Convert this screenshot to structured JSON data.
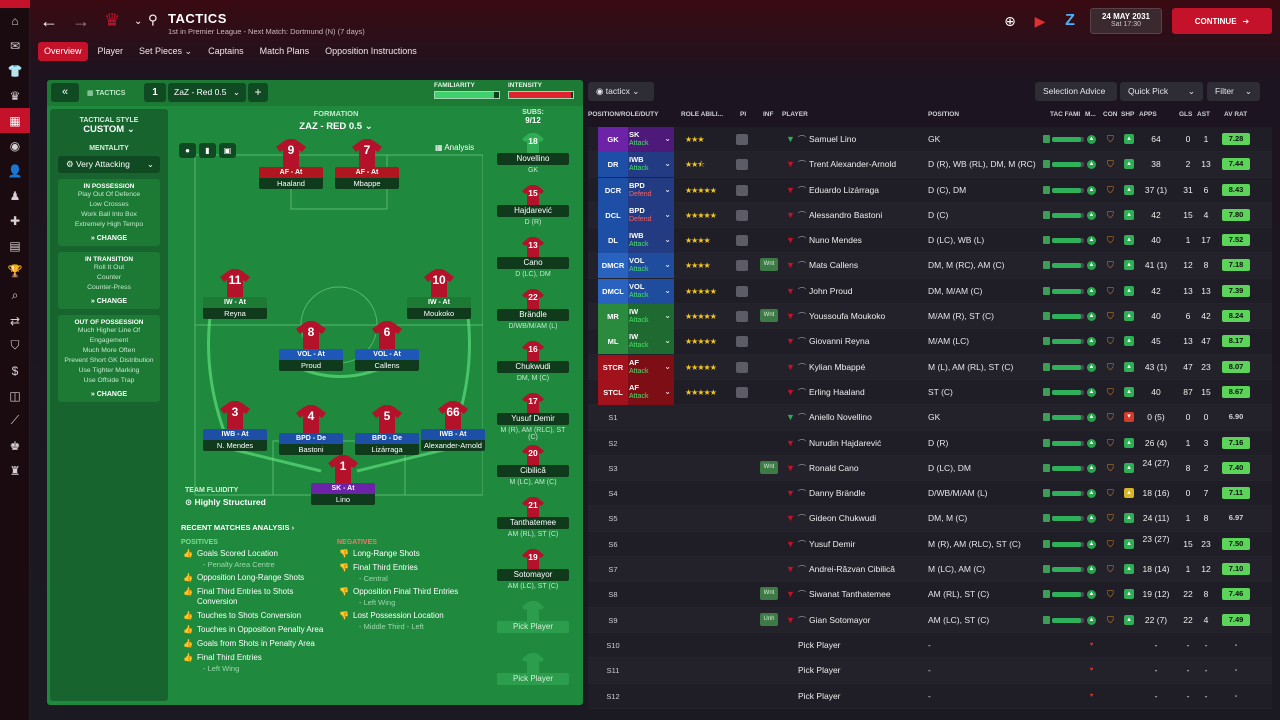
{
  "header": {
    "title": "TACTICS",
    "subtitle": "1st in Premier League - Next Match: Dortmund (N) (7 days)",
    "date": "24 MAY 2031",
    "time": "Sat 17:30",
    "continue_label": "CONTINUE"
  },
  "tabs": [
    {
      "label": "Overview",
      "active": true
    },
    {
      "label": "Player",
      "active": false
    },
    {
      "label": "Set Pieces ⌄",
      "active": false
    },
    {
      "label": "Captains",
      "active": false
    },
    {
      "label": "Match Plans",
      "active": false
    },
    {
      "label": "Opposition Instructions",
      "active": false
    }
  ],
  "tactic_header": {
    "tactics_label": "TACTICS",
    "slot": "1",
    "tactic_name": "ZaZ - Red 0.5",
    "familiarity_label": "FAMILIARITY",
    "intensity_label": "INTENSITY",
    "familiarity": 0.92,
    "intensity": 0.97
  },
  "style": {
    "tactical_style_label": "TACTICAL STYLE",
    "tactical_style": "CUSTOM",
    "mentality_label": "MENTALITY",
    "mentality": "Very Attacking",
    "phases": [
      {
        "title": "IN POSSESSION",
        "lines": [
          "Play Out Of Defence",
          "Low Crosses",
          "Work Ball Into Box",
          "Extremely High Tempo"
        ],
        "change": "CHANGE"
      },
      {
        "title": "IN TRANSITION",
        "lines": [
          "Roll It Out",
          "Counter",
          "Counter-Press"
        ],
        "change": "CHANGE"
      },
      {
        "title": "OUT OF POSSESSION",
        "lines": [
          "Much Higher Line Of Engagement",
          "Much More Often",
          "Prevent Short GK Distribution",
          "Use Tighter Marking",
          "Use Offside Trap"
        ],
        "change": "CHANGE"
      }
    ]
  },
  "formation": {
    "label": "FORMATION",
    "name": "ZAZ - RED 0.5",
    "analysis_label": "Analysis",
    "fluidity_label": "TEAM FLUIDITY",
    "fluidity": "Highly Structured"
  },
  "pitch_players": [
    {
      "num": "9",
      "role": "AF - At",
      "name": "Haaland",
      "cls": "r-att"
    },
    {
      "num": "7",
      "role": "AF - At",
      "name": "Mbappe",
      "cls": "r-att"
    },
    {
      "num": "11",
      "role": "IW - At",
      "name": "Reyna",
      "cls": "r-mid"
    },
    {
      "num": "10",
      "role": "IW - At",
      "name": "Moukoko",
      "cls": "r-mid"
    },
    {
      "num": "8",
      "role": "VOL - At",
      "name": "Proud",
      "cls": "r-dm"
    },
    {
      "num": "6",
      "role": "VOL - At",
      "name": "Callens",
      "cls": "r-dm"
    },
    {
      "num": "3",
      "role": "IWB - At",
      "name": "N. Mendes",
      "cls": "r-def"
    },
    {
      "num": "4",
      "role": "BPD - De",
      "name": "Bastoni",
      "cls": "r-def"
    },
    {
      "num": "5",
      "role": "BPD - De",
      "name": "Lizárraga",
      "cls": "r-def"
    },
    {
      "num": "66",
      "role": "IWB - At",
      "name": "Alexander-Arnold",
      "cls": "r-def"
    },
    {
      "num": "1",
      "role": "SK - At",
      "name": "Lino",
      "cls": "r-gk"
    }
  ],
  "subs": {
    "label": "SUBS:",
    "count": "9/12",
    "items": [
      {
        "num": "18",
        "name": "Novellino",
        "pos": "GK"
      },
      {
        "num": "15",
        "name": "Hajdarević",
        "pos": "D (R)"
      },
      {
        "num": "13",
        "name": "Cano",
        "pos": "D (LC), DM"
      },
      {
        "num": "22",
        "name": "Brändle",
        "pos": "D/WB/M/AM (L)"
      },
      {
        "num": "16",
        "name": "Chukwudi",
        "pos": "DM, M (C)"
      },
      {
        "num": "17",
        "name": "Yusuf Demir",
        "pos": "M (R), AM (RLC), ST (C)"
      },
      {
        "num": "20",
        "name": "Cibilică",
        "pos": "M (LC), AM (C)"
      },
      {
        "num": "21",
        "name": "Tanthatemee",
        "pos": "AM (RL), ST (C)"
      },
      {
        "num": "19",
        "name": "Sotomayor",
        "pos": "AM (LC), ST (C)"
      }
    ],
    "pick_label": "Pick Player"
  },
  "analysis": {
    "title": "RECENT MATCHES ANALYSIS ›",
    "positives_label": "POSITIVES",
    "negatives_label": "NEGATIVES",
    "positives": [
      {
        "text": "Goals Scored Location",
        "sub": "- Penalty Area Centre"
      },
      {
        "text": "Opposition Long-Range Shots",
        "sub": ""
      },
      {
        "text": "Final Third Entries to Shots Conversion",
        "sub": ""
      },
      {
        "text": "Touches to Shots Conversion",
        "sub": ""
      },
      {
        "text": "Touches in Opposition Penalty Area",
        "sub": ""
      },
      {
        "text": "Goals from Shots in Penalty Area",
        "sub": ""
      },
      {
        "text": "Final Third Entries",
        "sub": "- Left Wing"
      }
    ],
    "negatives": [
      {
        "text": "Long-Range Shots",
        "sub": ""
      },
      {
        "text": "Final Third Entries",
        "sub": "- Central"
      },
      {
        "text": "Opposition Final Third Entries",
        "sub": "- Left Wing"
      },
      {
        "text": "Lost Possession Location",
        "sub": "- Middle Third - Left"
      }
    ]
  },
  "list_tools": {
    "view_label": "tacticx",
    "selection_advice": "Selection Advice",
    "quick_pick": "Quick Pick",
    "filter": "Filter"
  },
  "columns": {
    "position": "POSITION/ROLE/DUTY",
    "role_ability": "ROLE ABILI...",
    "pi": "PI",
    "inf": "INF",
    "player": "PLAYER",
    "pos": "POSITION",
    "tac_fam": "TAC FAMI",
    "m": "M...",
    "con": "CON",
    "shp": "SHP",
    "apps": "APPS",
    "gls": "GLS",
    "ast": "AST",
    "avr": "AV RAT"
  },
  "colors": {
    "primary_red": "#c4122a",
    "pitch_green": "#1f8a3e",
    "gk_purple": "#6d23a8",
    "def_blue": "#1d4fa6",
    "mid_green": "#2a8a3e",
    "att_red": "#a1121c"
  },
  "players": [
    {
      "slot": "GK",
      "role": "SK",
      "duty": "Attack",
      "stars": "★★★",
      "inf": "",
      "name": "Samuel Lino",
      "position": "GK",
      "tac": 0.9,
      "con": "🛡",
      "shp": "up",
      "apps": "64",
      "gls": "0",
      "ast": "1",
      "avr": "7.28",
      "group": "gk"
    },
    {
      "slot": "DR",
      "role": "IWB",
      "duty": "Attack",
      "stars": "★★⯪",
      "inf": "",
      "name": "Trent Alexander-Arnold",
      "position": "D (R), WB (RL), DM, M (RC)",
      "tac": 0.9,
      "con": "🛡",
      "shp": "up",
      "apps": "38",
      "gls": "2",
      "ast": "13",
      "avr": "7.44",
      "group": "def"
    },
    {
      "slot": "DCR",
      "role": "BPD",
      "duty": "Defend",
      "stars": "★★★★★",
      "inf": "",
      "name": "Eduardo Lizárraga",
      "position": "D (C), DM",
      "tac": 0.9,
      "con": "🛡",
      "shp": "up",
      "apps": "37 (1)",
      "gls": "31",
      "ast": "6",
      "avr": "8.43",
      "group": "def"
    },
    {
      "slot": "DCL",
      "role": "BPD",
      "duty": "Defend",
      "stars": "★★★★★",
      "inf": "",
      "name": "Alessandro Bastoni",
      "position": "D (C)",
      "tac": 0.9,
      "con": "🛡",
      "shp": "up",
      "apps": "42",
      "gls": "15",
      "ast": "4",
      "avr": "7.80",
      "group": "def"
    },
    {
      "slot": "DL",
      "role": "IWB",
      "duty": "Attack",
      "stars": "★★★★",
      "inf": "",
      "name": "Nuno Mendes",
      "position": "D (LC), WB (L)",
      "tac": 0.9,
      "con": "🛡",
      "shp": "up",
      "apps": "40",
      "gls": "1",
      "ast": "17",
      "avr": "7.52",
      "group": "def"
    },
    {
      "slot": "DMCR",
      "role": "VOL",
      "duty": "Attack",
      "stars": "★★★★",
      "inf": "Wnt",
      "name": "Mats Callens",
      "position": "DM, M (RC), AM (C)",
      "tac": 0.9,
      "con": "🛡",
      "shp": "up",
      "apps": "41 (1)",
      "gls": "12",
      "ast": "8",
      "avr": "7.18",
      "group": "dm"
    },
    {
      "slot": "DMCL",
      "role": "VOL",
      "duty": "Attack",
      "stars": "★★★★★",
      "inf": "",
      "name": "John Proud",
      "position": "DM, M/AM (C)",
      "tac": 0.9,
      "con": "🛡",
      "shp": "up",
      "apps": "42",
      "gls": "13",
      "ast": "13",
      "avr": "7.39",
      "group": "dm"
    },
    {
      "slot": "MR",
      "role": "IW",
      "duty": "Attack",
      "stars": "★★★★★",
      "inf": "Wnt",
      "name": "Youssoufa Moukoko",
      "position": "M/AM (R), ST (C)",
      "tac": 0.9,
      "con": "🛡",
      "shp": "up",
      "apps": "40",
      "gls": "6",
      "ast": "42",
      "avr": "8.24",
      "group": "mid"
    },
    {
      "slot": "ML",
      "role": "IW",
      "duty": "Attack",
      "stars": "★★★★★",
      "inf": "",
      "name": "Giovanni Reyna",
      "position": "M/AM (LC)",
      "tac": 0.9,
      "con": "🛡",
      "shp": "up",
      "apps": "45",
      "gls": "13",
      "ast": "47",
      "avr": "8.17",
      "group": "mid"
    },
    {
      "slot": "STCR",
      "role": "AF",
      "duty": "Attack",
      "stars": "★★★★★",
      "inf": "",
      "name": "Kylian Mbappé",
      "position": "M (L), AM (RL), ST (C)",
      "tac": 0.9,
      "con": "🛡",
      "shp": "up",
      "apps": "43 (1)",
      "gls": "47",
      "ast": "23",
      "avr": "8.07",
      "group": "att"
    },
    {
      "slot": "STCL",
      "role": "AF",
      "duty": "Attack",
      "stars": "★★★★★",
      "inf": "",
      "name": "Erling Haaland",
      "position": "ST (C)",
      "tac": 0.9,
      "con": "🛡",
      "shp": "up",
      "apps": "40",
      "gls": "87",
      "ast": "15",
      "avr": "8.67",
      "group": "att"
    },
    {
      "slot": "S1",
      "role": "",
      "duty": "",
      "stars": "",
      "inf": "",
      "name": "Aniello Novellino",
      "position": "GK",
      "tac": 0.9,
      "con": "🛡",
      "shp": "down",
      "apps": "0 (5)",
      "gls": "0",
      "ast": "0",
      "avr": "6.90",
      "group": "sub"
    },
    {
      "slot": "S2",
      "role": "",
      "duty": "",
      "stars": "",
      "inf": "",
      "name": "Nurudin Hajdarević",
      "position": "D (R)",
      "tac": 0.9,
      "con": "🛡",
      "shp": "up",
      "apps": "26 (4)",
      "gls": "1",
      "ast": "3",
      "avr": "7.16",
      "group": "sub"
    },
    {
      "slot": "S3",
      "role": "",
      "duty": "",
      "stars": "",
      "inf": "Wnt",
      "name": "Ronald Cano",
      "position": "D (LC), DM",
      "tac": 0.9,
      "con": "🛡",
      "shp": "up",
      "apps": "24 (27)",
      "gls": "8",
      "ast": "2",
      "avr": "7.40",
      "group": "sub"
    },
    {
      "slot": "S4",
      "role": "",
      "duty": "",
      "stars": "",
      "inf": "",
      "name": "Danny Brändle",
      "position": "D/WB/M/AM (L)",
      "tac": 0.9,
      "con": "🛡",
      "shp": "mid",
      "apps": "18 (16)",
      "gls": "0",
      "ast": "7",
      "avr": "7.11",
      "group": "sub"
    },
    {
      "slot": "S5",
      "role": "",
      "duty": "",
      "stars": "",
      "inf": "",
      "name": "Gideon Chukwudi",
      "position": "DM, M (C)",
      "tac": 0.9,
      "con": "🛡",
      "shp": "up",
      "apps": "24 (11)",
      "gls": "1",
      "ast": "8",
      "avr": "6.97",
      "group": "sub"
    },
    {
      "slot": "S6",
      "role": "",
      "duty": "",
      "stars": "",
      "inf": "",
      "name": "Yusuf Demir",
      "position": "M (R), AM (RLC), ST (C)",
      "tac": 0.9,
      "con": "🛡",
      "shp": "up",
      "apps": "23 (27)",
      "gls": "15",
      "ast": "23",
      "avr": "7.50",
      "group": "sub"
    },
    {
      "slot": "S7",
      "role": "",
      "duty": "",
      "stars": "",
      "inf": "",
      "name": "Andrei-Răzvan Cibilică",
      "position": "M (LC), AM (C)",
      "tac": 0.9,
      "con": "🛡",
      "shp": "up",
      "apps": "18 (14)",
      "gls": "1",
      "ast": "12",
      "avr": "7.10",
      "group": "sub"
    },
    {
      "slot": "S8",
      "role": "",
      "duty": "",
      "stars": "",
      "inf": "Wnt",
      "name": "Siwanat Tanthatemee",
      "position": "AM (RL), ST (C)",
      "tac": 0.9,
      "con": "🛡",
      "shp": "up",
      "apps": "19 (12)",
      "gls": "22",
      "ast": "8",
      "avr": "7.46",
      "group": "sub"
    },
    {
      "slot": "S9",
      "role": "",
      "duty": "",
      "stars": "",
      "inf": "Unh",
      "name": "Gian Sotomayor",
      "position": "AM (LC), ST (C)",
      "tac": 0.9,
      "con": "🛡",
      "shp": "up",
      "apps": "22 (7)",
      "gls": "22",
      "ast": "4",
      "avr": "7.49",
      "group": "sub"
    },
    {
      "slot": "S10",
      "role": "",
      "duty": "",
      "stars": "",
      "inf": "",
      "name": "Pick Player",
      "position": "-",
      "tac": 0,
      "con": "",
      "shp": "",
      "apps": "-",
      "gls": "-",
      "ast": "-",
      "avr": "-",
      "group": "empty"
    },
    {
      "slot": "S11",
      "role": "",
      "duty": "",
      "stars": "",
      "inf": "",
      "name": "Pick Player",
      "position": "-",
      "tac": 0,
      "con": "",
      "shp": "",
      "apps": "-",
      "gls": "-",
      "ast": "-",
      "avr": "-",
      "group": "empty"
    },
    {
      "slot": "S12",
      "role": "",
      "duty": "",
      "stars": "",
      "inf": "",
      "name": "Pick Player",
      "position": "-",
      "tac": 0,
      "con": "",
      "shp": "",
      "apps": "-",
      "gls": "-",
      "ast": "-",
      "avr": "-",
      "group": "empty"
    }
  ]
}
